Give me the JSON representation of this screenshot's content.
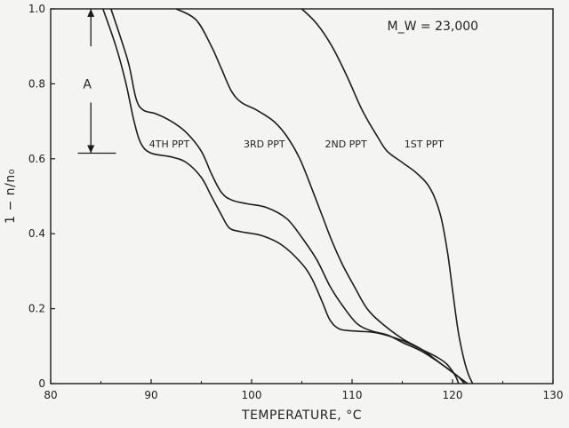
{
  "chart_data": {
    "type": "line",
    "title": "",
    "xlabel": "TEMPERATURE, °C",
    "ylabel": "1 − n/n₀",
    "xlim": [
      80,
      130
    ],
    "ylim": [
      0,
      1.0
    ],
    "x_ticks": [
      80,
      90,
      100,
      110,
      120,
      130
    ],
    "x_tick_labels": [
      "80",
      "90",
      "100",
      "110",
      "120",
      "130"
    ],
    "y_ticks": [
      0,
      0.2,
      0.4,
      0.6,
      0.8,
      1.0
    ],
    "y_tick_labels": [
      "0",
      "0.2",
      "0.4",
      "0.6",
      "0.8",
      "1.0"
    ],
    "grid": false,
    "annotations": {
      "mw": "M_W = 23,000",
      "a_label": "A",
      "a_range": [
        0.615,
        1.0
      ],
      "a_x": 84
    },
    "series": [
      {
        "name": "4TH PPT",
        "label_at": [
          89.8,
          0.64
        ],
        "points": [
          [
            85.2,
            1.0
          ],
          [
            86.5,
            0.9
          ],
          [
            87.5,
            0.8
          ],
          [
            88.3,
            0.7
          ],
          [
            89,
            0.64
          ],
          [
            90,
            0.615
          ],
          [
            92,
            0.605
          ],
          [
            93.5,
            0.59
          ],
          [
            95,
            0.55
          ],
          [
            96,
            0.5
          ],
          [
            97,
            0.45
          ],
          [
            97.8,
            0.415
          ],
          [
            99,
            0.405
          ],
          [
            101,
            0.395
          ],
          [
            103,
            0.37
          ],
          [
            105,
            0.32
          ],
          [
            106,
            0.28
          ],
          [
            107,
            0.22
          ],
          [
            107.8,
            0.17
          ],
          [
            108.8,
            0.145
          ],
          [
            110.5,
            0.14
          ],
          [
            112.5,
            0.135
          ],
          [
            115,
            0.115
          ],
          [
            117,
            0.09
          ],
          [
            118.5,
            0.07
          ],
          [
            119.5,
            0.05
          ],
          [
            120.3,
            0.02
          ],
          [
            120.6,
            0.0
          ]
        ]
      },
      {
        "name": "3RD PPT",
        "label_at": [
          99.2,
          0.64
        ],
        "points": [
          [
            86,
            1.0
          ],
          [
            87,
            0.92
          ],
          [
            87.8,
            0.85
          ],
          [
            88.5,
            0.76
          ],
          [
            89.2,
            0.73
          ],
          [
            90.5,
            0.72
          ],
          [
            92,
            0.7
          ],
          [
            93.5,
            0.67
          ],
          [
            95,
            0.62
          ],
          [
            96,
            0.56
          ],
          [
            97,
            0.51
          ],
          [
            98,
            0.49
          ],
          [
            99.5,
            0.48
          ],
          [
            101.5,
            0.47
          ],
          [
            103.5,
            0.44
          ],
          [
            105,
            0.39
          ],
          [
            106.5,
            0.33
          ],
          [
            107.8,
            0.26
          ],
          [
            109,
            0.21
          ],
          [
            110.5,
            0.16
          ],
          [
            112,
            0.14
          ],
          [
            113.5,
            0.13
          ],
          [
            115,
            0.11
          ],
          [
            117,
            0.085
          ],
          [
            119,
            0.05
          ],
          [
            120.5,
            0.02
          ],
          [
            121.2,
            0.0
          ]
        ]
      },
      {
        "name": "2ND PPT",
        "label_at": [
          107.3,
          0.64
        ],
        "points": [
          [
            92.5,
            1.0
          ],
          [
            94.5,
            0.97
          ],
          [
            96,
            0.9
          ],
          [
            97,
            0.84
          ],
          [
            98,
            0.78
          ],
          [
            99,
            0.75
          ],
          [
            100.5,
            0.73
          ],
          [
            102.2,
            0.7
          ],
          [
            103.5,
            0.66
          ],
          [
            104.8,
            0.6
          ],
          [
            106,
            0.52
          ],
          [
            107,
            0.45
          ],
          [
            108,
            0.38
          ],
          [
            109,
            0.32
          ],
          [
            110.2,
            0.26
          ],
          [
            111.5,
            0.2
          ],
          [
            113,
            0.16
          ],
          [
            115,
            0.12
          ],
          [
            117,
            0.09
          ],
          [
            119,
            0.05
          ],
          [
            120.5,
            0.02
          ],
          [
            121.5,
            0.0
          ]
        ]
      },
      {
        "name": "1ST PPT",
        "label_at": [
          115.2,
          0.64
        ],
        "points": [
          [
            105,
            1.0
          ],
          [
            106.5,
            0.96
          ],
          [
            108,
            0.9
          ],
          [
            109.5,
            0.82
          ],
          [
            111,
            0.73
          ],
          [
            112.5,
            0.66
          ],
          [
            113.5,
            0.62
          ],
          [
            115,
            0.59
          ],
          [
            116.5,
            0.56
          ],
          [
            117.8,
            0.52
          ],
          [
            118.8,
            0.45
          ],
          [
            119.5,
            0.35
          ],
          [
            120,
            0.25
          ],
          [
            120.5,
            0.15
          ],
          [
            121,
            0.08
          ],
          [
            121.5,
            0.03
          ],
          [
            122,
            0.0
          ]
        ]
      }
    ]
  }
}
